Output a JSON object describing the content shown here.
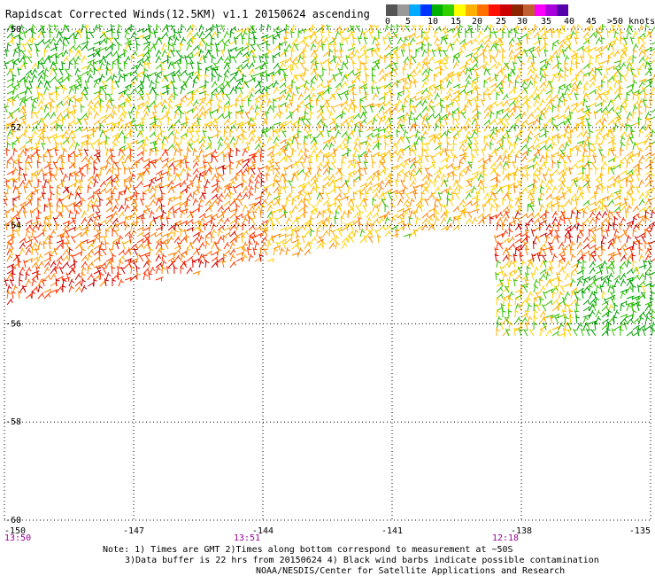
{
  "title": "Rapidscat Corrected Winds(12.5KM) v1.1 20150624 ascending",
  "legend": {
    "labels": [
      "0",
      "5",
      "10",
      "15",
      "20",
      "25",
      "30",
      "35",
      "40",
      "45",
      ">50 knots"
    ],
    "colors": [
      "#555555",
      "#999999",
      "#00aaff",
      "#0033ff",
      "#00b000",
      "#33d000",
      "#ffff00",
      "#ffb000",
      "#ff7000",
      "#ff1000",
      "#cc0000",
      "#8b2500",
      "#c06030",
      "#ff00ff",
      "#aa00dd",
      "#5500aa"
    ]
  },
  "axes": {
    "lat_labels": [
      "-50",
      "-52",
      "-54",
      "-56",
      "-58",
      "-60"
    ],
    "lon_labels": [
      "-150",
      "-147",
      "-144",
      "-141",
      "-138",
      "-135"
    ],
    "lat_ticks": [
      -50,
      -52,
      -54,
      -56,
      -58,
      -60
    ],
    "lon_ticks": [
      -150,
      -147,
      -144,
      -141,
      -138,
      -135
    ],
    "lat_range": [
      -60,
      -50
    ],
    "lon_range": [
      -150,
      -135
    ]
  },
  "times": [
    {
      "label": "13:50",
      "lon": -150
    },
    {
      "label": "13:51",
      "lon": -144
    },
    {
      "label": "12:18",
      "lon": -138
    }
  ],
  "notes": [
    "Note: 1) Times are GMT 2)Times along bottom correspond to measurement at ~50S",
    "3)Data buffer is 22 hrs from 20150624 4) Black wind barbs indicate possible contamination",
    "NOAA/NESDIS/Center for Satellite Applications and Research"
  ],
  "style": {
    "time_color": "#990099"
  }
}
